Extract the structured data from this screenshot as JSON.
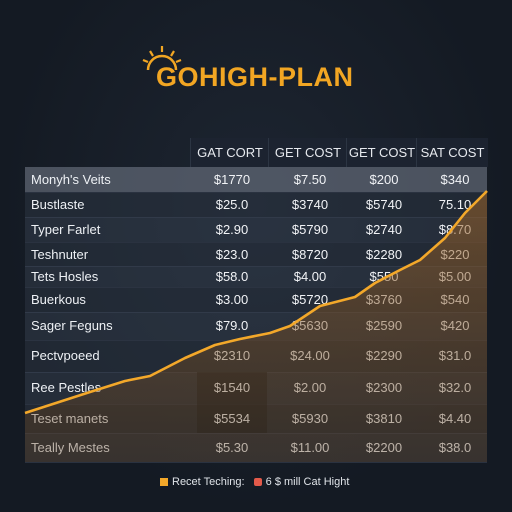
{
  "app": {
    "title": "GOHIGH-PLAN"
  },
  "table": {
    "columns": [
      "GAT CORT",
      "GET COST",
      "GET COST",
      "SAT COST"
    ],
    "rows": [
      {
        "label": "Monyh's Veits",
        "values": [
          "$1770",
          "$7.50",
          "$200",
          "$340"
        ]
      },
      {
        "label": "Bustlaste",
        "values": [
          "$25.0",
          "$3740",
          "$5740",
          "75.10"
        ]
      },
      {
        "label": "Typer Farlet",
        "values": [
          "$2.90",
          "$5790",
          "$2740",
          "$8.70"
        ]
      },
      {
        "label": "Teshnuter",
        "values": [
          "$23.0",
          "$8720",
          "$2280",
          "$220"
        ]
      },
      {
        "label": "Tets Hosles",
        "values": [
          "$58.0",
          "$4.00",
          "$550",
          "$5.00"
        ]
      },
      {
        "label": "Buerkous",
        "values": [
          "$3.00",
          "$5720",
          "$3760",
          "$540"
        ]
      },
      {
        "label": "Sager Feguns",
        "values": [
          "$79.0",
          "$5630",
          "$2590",
          "$420"
        ]
      },
      {
        "label": "Pectvpoeed",
        "values": [
          "$2310",
          "$24.00",
          "$2290",
          "$31.0"
        ]
      },
      {
        "label": "Ree Pestles",
        "values": [
          "$1540",
          "$2.00",
          "$2300",
          "$32.0"
        ]
      },
      {
        "label": "Teset manets",
        "values": [
          "$5534",
          "$5930",
          "$3810",
          "$4.40"
        ]
      },
      {
        "label": "Teally Mestes",
        "values": [
          "$5.30",
          "$11.00",
          "$2200",
          "$38.0"
        ]
      }
    ]
  },
  "legend": {
    "item1": "Recet Teching:",
    "item2": "6 $ mill Cat Hight"
  },
  "colors": {
    "accent": "#f3a82a",
    "area": "#8a5a25",
    "legend_red": "#e35a4a"
  },
  "icons": {
    "logo": "sun-icon"
  }
}
